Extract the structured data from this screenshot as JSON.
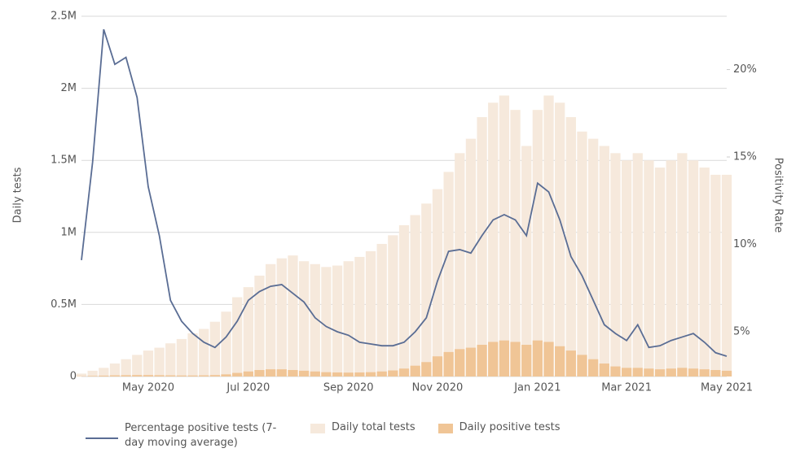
{
  "chart_data": {
    "type": "bar-line",
    "y_label": "Daily tests",
    "y2_label": "Positivity Rate",
    "categories": [
      null,
      null,
      null,
      null,
      null,
      null,
      "May 2020",
      null,
      null,
      null,
      null,
      null,
      null,
      null,
      null,
      "Jul 2020",
      null,
      null,
      null,
      null,
      null,
      null,
      null,
      null,
      "Sep 2020",
      null,
      null,
      null,
      null,
      null,
      null,
      null,
      "Nov 2020",
      null,
      null,
      null,
      null,
      null,
      null,
      null,
      null,
      "Jan 2021",
      null,
      null,
      null,
      null,
      null,
      null,
      null,
      "Mar 2021",
      null,
      null,
      null,
      null,
      null,
      null,
      null,
      null,
      "May 2021"
    ],
    "series": [
      {
        "name": "Percentage positive tests (7-day moving average)",
        "type": "line",
        "axis": "y2",
        "color": "#5a6d94",
        "values": [
          9.1,
          14.7,
          22.3,
          20.3,
          20.7,
          18.4,
          13.3,
          10.5,
          6.8,
          5.6,
          4.9,
          4.4,
          4.1,
          4.7,
          5.6,
          6.8,
          7.3,
          7.6,
          7.7,
          7.2,
          6.7,
          5.8,
          5.3,
          5.0,
          4.8,
          4.4,
          4.3,
          4.2,
          4.2,
          4.4,
          5.0,
          5.8,
          7.9,
          9.6,
          9.7,
          9.5,
          10.5,
          11.4,
          11.7,
          11.4,
          10.5,
          13.5,
          13.0,
          11.4,
          9.3,
          8.2,
          6.8,
          5.4,
          4.9,
          4.5,
          5.4,
          4.1,
          4.2,
          4.5,
          4.7,
          4.9,
          4.4,
          3.8,
          3.6
        ]
      },
      {
        "name": "Daily total tests",
        "type": "bar",
        "color": "#f6e9dc",
        "values": [
          20000,
          40000,
          60000,
          90000,
          120000,
          150000,
          180000,
          200000,
          230000,
          260000,
          300000,
          330000,
          380000,
          450000,
          550000,
          620000,
          700000,
          780000,
          820000,
          840000,
          800000,
          780000,
          760000,
          770000,
          800000,
          830000,
          870000,
          920000,
          980000,
          1050000,
          1120000,
          1200000,
          1300000,
          1420000,
          1550000,
          1650000,
          1800000,
          1900000,
          1950000,
          1850000,
          1600000,
          1850000,
          1950000,
          1900000,
          1800000,
          1700000,
          1650000,
          1600000,
          1550000,
          1500000,
          1550000,
          1500000,
          1450000,
          1500000,
          1550000,
          1500000,
          1450000,
          1400000,
          1400000
        ]
      },
      {
        "name": "Daily positive tests",
        "type": "bar",
        "color": "#f0c596",
        "values": [
          2000,
          4000,
          6000,
          8000,
          9000,
          10000,
          10000,
          9000,
          8000,
          7000,
          7000,
          8000,
          10000,
          15000,
          25000,
          35000,
          45000,
          50000,
          50000,
          45000,
          40000,
          35000,
          30000,
          28000,
          27000,
          28000,
          30000,
          35000,
          42000,
          55000,
          75000,
          100000,
          140000,
          170000,
          190000,
          200000,
          220000,
          240000,
          250000,
          240000,
          220000,
          250000,
          240000,
          210000,
          180000,
          150000,
          120000,
          90000,
          70000,
          60000,
          60000,
          55000,
          50000,
          55000,
          60000,
          55000,
          50000,
          45000,
          40000
        ]
      }
    ],
    "ylim": [
      0,
      2500000
    ],
    "yticks": [
      0,
      {
        "value": 500000,
        "label": "0.5M"
      },
      {
        "value": 1000000,
        "label": "1M"
      },
      {
        "value": 1500000,
        "label": "1.5M"
      },
      {
        "value": 2000000,
        "label": "2M"
      },
      {
        "value": 2500000,
        "label": "2.5M"
      }
    ],
    "y2lim": [
      2.44,
      23.05
    ],
    "y2ticks": [
      {
        "value": 5,
        "label": "5%"
      },
      {
        "value": 10,
        "label": "10%"
      },
      {
        "value": 15,
        "label": "15%"
      },
      {
        "value": 20,
        "label": "20%"
      }
    ],
    "grid": true
  }
}
